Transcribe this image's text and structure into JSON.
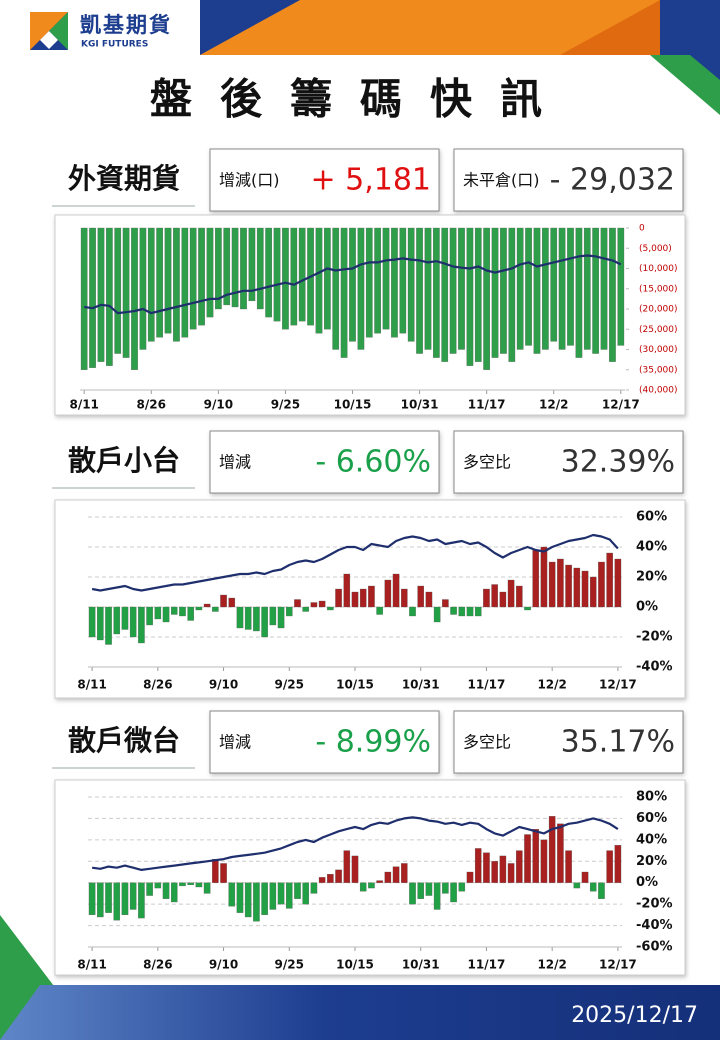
{
  "header": {
    "brand": "凱基期貨",
    "brand_en": "KGI FUTURES",
    "title": "盤後籌碼快訊"
  },
  "sections": [
    {
      "label": "外資期貨",
      "boxes": [
        {
          "label": "增減(口)",
          "value": "+ 5,181",
          "color": "#e01010"
        },
        {
          "label": "未平倉(口)",
          "value": "- 29,032",
          "color": "#333333"
        }
      ]
    },
    {
      "label": "散戶小台",
      "boxes": [
        {
          "label": "增減",
          "value": "- 6.60%",
          "color": "#1aa04a"
        },
        {
          "label": "多空比",
          "value": "32.39%",
          "color": "#333333"
        }
      ]
    },
    {
      "label": "散戶微台",
      "boxes": [
        {
          "label": "增減",
          "value": "- 8.99%",
          "color": "#1aa04a"
        },
        {
          "label": "多空比",
          "value": "35.17%",
          "color": "#333333"
        }
      ]
    }
  ],
  "footer": {
    "date": "2025/12/17"
  },
  "chart_data": [
    {
      "type": "combo",
      "grid": false,
      "categories": [
        "8/11",
        null,
        null,
        null,
        null,
        null,
        null,
        null,
        "8/26",
        null,
        null,
        null,
        null,
        null,
        null,
        null,
        "9/10",
        null,
        null,
        null,
        null,
        null,
        null,
        null,
        "9/25",
        null,
        null,
        null,
        null,
        null,
        null,
        null,
        "10/15",
        null,
        null,
        null,
        null,
        null,
        null,
        null,
        "10/31",
        null,
        null,
        null,
        null,
        null,
        null,
        null,
        "11/17",
        null,
        null,
        null,
        null,
        null,
        null,
        null,
        "12/2",
        null,
        null,
        null,
        null,
        null,
        null,
        null,
        "12/17"
      ],
      "ylim": [
        -40000,
        0
      ],
      "yticks": [
        0,
        {
          "value": -5000,
          "label": "(5,000)"
        },
        {
          "value": -10000,
          "label": "(10,000)"
        },
        {
          "value": -15000,
          "label": "(15,000)"
        },
        {
          "value": -20000,
          "label": "(20,000)"
        },
        {
          "value": -25000,
          "label": "(25,000)"
        },
        {
          "value": -30000,
          "label": "(30,000)"
        },
        {
          "value": -35000,
          "label": "(35,000)"
        },
        {
          "value": -40000,
          "label": "(40,000)"
        }
      ],
      "series": [
        {
          "type": "bar",
          "color": "#2e9e4a",
          "values": [
            -35000,
            -34500,
            -33000,
            -34000,
            -31000,
            -32000,
            -35000,
            -30000,
            -28000,
            -27000,
            -26000,
            -28000,
            -27000,
            -25000,
            -24000,
            -22000,
            -20000,
            -19000,
            -19500,
            -20000,
            -18000,
            -20000,
            -22000,
            -23000,
            -25000,
            -24000,
            -23000,
            -24000,
            -26000,
            -25000,
            -30000,
            -32000,
            -28000,
            -30000,
            -27000,
            -26000,
            -25000,
            -27000,
            -26000,
            -28000,
            -31000,
            -30000,
            -32000,
            -33000,
            -31000,
            -30000,
            -34000,
            -33000,
            -35000,
            -32000,
            -31000,
            -33000,
            -30000,
            -29000,
            -31000,
            -30000,
            -28000,
            -30000,
            -29000,
            -32000,
            -30000,
            -31000,
            -30000,
            -33000,
            -29000
          ]
        },
        {
          "type": "line",
          "color": "#1f2f6e",
          "values": [
            -19500,
            -19800,
            -19000,
            -19200,
            -21000,
            -20800,
            -20500,
            -20000,
            -21000,
            -20500,
            -20000,
            -19500,
            -19000,
            -18500,
            -18000,
            -17500,
            -17500,
            -16500,
            -16000,
            -15500,
            -15500,
            -15000,
            -14500,
            -14000,
            -13500,
            -14000,
            -13000,
            -12000,
            -11000,
            -10000,
            -10500,
            -10200,
            -10000,
            -9000,
            -8500,
            -8500,
            -8000,
            -7800,
            -7500,
            -7800,
            -8000,
            -8500,
            -8200,
            -8800,
            -9500,
            -9800,
            -10000,
            -9500,
            -10500,
            -11000,
            -10500,
            -10000,
            -9000,
            -8500,
            -9500,
            -9000,
            -8500,
            -8000,
            -7500,
            -7000,
            -6800,
            -7000,
            -7500,
            -8000,
            -9000
          ]
        }
      ]
    },
    {
      "type": "combo",
      "grid": true,
      "categories": [
        "8/11",
        null,
        null,
        null,
        null,
        null,
        null,
        null,
        "8/26",
        null,
        null,
        null,
        null,
        null,
        null,
        null,
        "9/10",
        null,
        null,
        null,
        null,
        null,
        null,
        null,
        "9/25",
        null,
        null,
        null,
        null,
        null,
        null,
        null,
        "10/15",
        null,
        null,
        null,
        null,
        null,
        null,
        null,
        "10/31",
        null,
        null,
        null,
        null,
        null,
        null,
        null,
        "11/17",
        null,
        null,
        null,
        null,
        null,
        null,
        null,
        "12/2",
        null,
        null,
        null,
        null,
        null,
        null,
        null,
        "12/17"
      ],
      "ylim": [
        -40,
        60
      ],
      "yticks": [
        {
          "value": -40,
          "label": "-40%"
        },
        {
          "value": -20,
          "label": "-20%"
        },
        {
          "value": 0,
          "label": "0%"
        },
        {
          "value": 20,
          "label": "20%"
        },
        {
          "value": 40,
          "label": "40%"
        },
        {
          "value": 60,
          "label": "60%"
        }
      ],
      "series": [
        {
          "type": "bar",
          "color": "#a82020",
          "negative_color": "#22a045",
          "values": [
            -20,
            -22,
            -25,
            -18,
            -15,
            -20,
            -24,
            -12,
            -8,
            -10,
            -5,
            -6,
            -9,
            -2,
            2,
            -3,
            8,
            6,
            -14,
            -15,
            -16,
            -20,
            -12,
            -14,
            -6,
            5,
            -3,
            3,
            4,
            -2,
            12,
            22,
            10,
            12,
            14,
            -5,
            18,
            22,
            12,
            -6,
            14,
            10,
            -10,
            5,
            -5,
            -6,
            -6,
            -6,
            12,
            15,
            10,
            18,
            14,
            -2,
            38,
            40,
            30,
            32,
            28,
            26,
            24,
            20,
            30,
            36,
            32
          ]
        },
        {
          "type": "line",
          "color": "#1f2f6e",
          "values": [
            12,
            11,
            12,
            13,
            14,
            12,
            11,
            12,
            13,
            14,
            15,
            15,
            16,
            17,
            18,
            19,
            20,
            21,
            22,
            22,
            23,
            22,
            24,
            25,
            28,
            30,
            31,
            30,
            32,
            35,
            38,
            40,
            40,
            38,
            42,
            41,
            40,
            44,
            46,
            47,
            46,
            44,
            45,
            42,
            43,
            44,
            42,
            43,
            40,
            36,
            33,
            36,
            38,
            40,
            38,
            37,
            40,
            42,
            44,
            45,
            46,
            48,
            47,
            45,
            39
          ]
        }
      ]
    },
    {
      "type": "combo",
      "grid": true,
      "categories": [
        "8/11",
        null,
        null,
        null,
        null,
        null,
        null,
        null,
        "8/26",
        null,
        null,
        null,
        null,
        null,
        null,
        null,
        "9/10",
        null,
        null,
        null,
        null,
        null,
        null,
        null,
        "9/25",
        null,
        null,
        null,
        null,
        null,
        null,
        null,
        "10/15",
        null,
        null,
        null,
        null,
        null,
        null,
        null,
        "10/31",
        null,
        null,
        null,
        null,
        null,
        null,
        null,
        "11/17",
        null,
        null,
        null,
        null,
        null,
        null,
        null,
        "12/2",
        null,
        null,
        null,
        null,
        null,
        null,
        null,
        "12/17"
      ],
      "ylim": [
        -60,
        80
      ],
      "yticks": [
        {
          "value": -60,
          "label": "-60%"
        },
        {
          "value": -40,
          "label": "-40%"
        },
        {
          "value": -20,
          "label": "-20%"
        },
        {
          "value": 0,
          "label": "0%"
        },
        {
          "value": 20,
          "label": "20%"
        },
        {
          "value": 40,
          "label": "40%"
        },
        {
          "value": 60,
          "label": "60%"
        },
        {
          "value": 80,
          "label": "80%"
        }
      ],
      "series": [
        {
          "type": "bar",
          "color": "#a82020",
          "negative_color": "#22a045",
          "values": [
            -30,
            -32,
            -28,
            -35,
            -30,
            -25,
            -33,
            -12,
            -5,
            -15,
            -18,
            -3,
            -2,
            -4,
            -10,
            22,
            18,
            -22,
            -28,
            -32,
            -36,
            -30,
            -25,
            -20,
            -24,
            -15,
            -20,
            -10,
            5,
            8,
            12,
            30,
            25,
            -8,
            -5,
            2,
            10,
            15,
            18,
            -20,
            -15,
            -12,
            -25,
            -10,
            -18,
            -8,
            10,
            32,
            28,
            20,
            25,
            18,
            30,
            45,
            50,
            40,
            62,
            55,
            30,
            -5,
            10,
            -8,
            -15,
            30,
            35
          ]
        },
        {
          "type": "line",
          "color": "#1f2f6e",
          "values": [
            14,
            13,
            15,
            14,
            16,
            14,
            12,
            13,
            14,
            15,
            16,
            17,
            18,
            19,
            20,
            21,
            22,
            24,
            25,
            26,
            27,
            28,
            30,
            32,
            35,
            38,
            40,
            38,
            42,
            45,
            48,
            50,
            52,
            50,
            54,
            56,
            55,
            58,
            60,
            61,
            60,
            58,
            57,
            55,
            56,
            54,
            56,
            55,
            50,
            46,
            44,
            48,
            52,
            50,
            48,
            46,
            50,
            52,
            55,
            56,
            58,
            60,
            58,
            55,
            50
          ]
        }
      ]
    }
  ]
}
